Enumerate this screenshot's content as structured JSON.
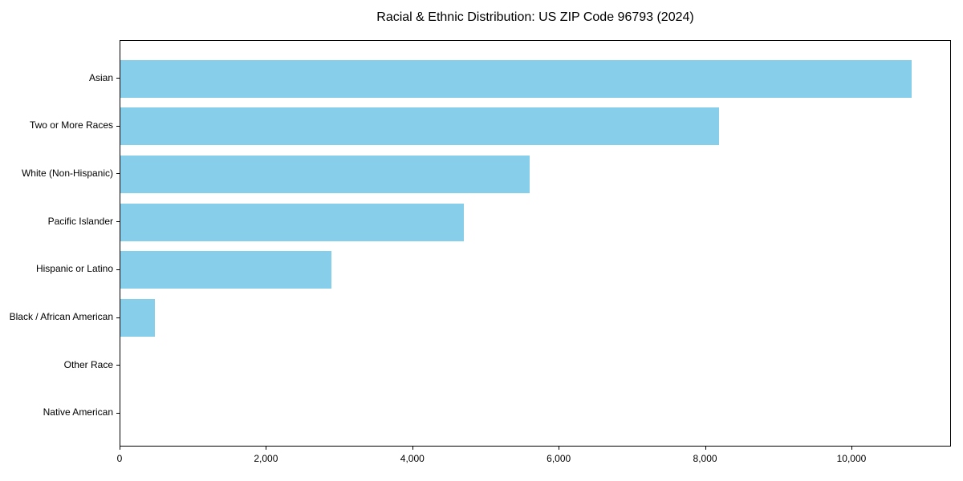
{
  "title": "Racial & Ethnic Distribution: US ZIP Code 96793 (2024)",
  "colors": {
    "bar_fill": "#87CEEB",
    "spine": "#000000",
    "background": "#ffffff",
    "text": "#000000"
  },
  "chart_data": {
    "type": "bar",
    "orientation": "horizontal",
    "title": "Racial & Ethnic Distribution: US ZIP Code 96793 (2024)",
    "xlabel": "",
    "ylabel": "",
    "categories": [
      "Asian",
      "Two or More Races",
      "White (Non-Hispanic)",
      "Pacific Islander",
      "Hispanic or Latino",
      "Black / African American",
      "Other Race",
      "Native American"
    ],
    "values": [
      10810,
      8180,
      5590,
      4690,
      2880,
      470,
      0,
      0
    ],
    "xlim": [
      0,
      11360
    ],
    "x_ticks": [
      {
        "value": 0,
        "label": "0"
      },
      {
        "value": 2000,
        "label": "2,000"
      },
      {
        "value": 4000,
        "label": "4,000"
      },
      {
        "value": 6000,
        "label": "6,000"
      },
      {
        "value": 8000,
        "label": "8,000"
      },
      {
        "value": 10000,
        "label": "10,000"
      }
    ],
    "grid": false,
    "legend": null,
    "bar_color": "#87CEEB"
  }
}
